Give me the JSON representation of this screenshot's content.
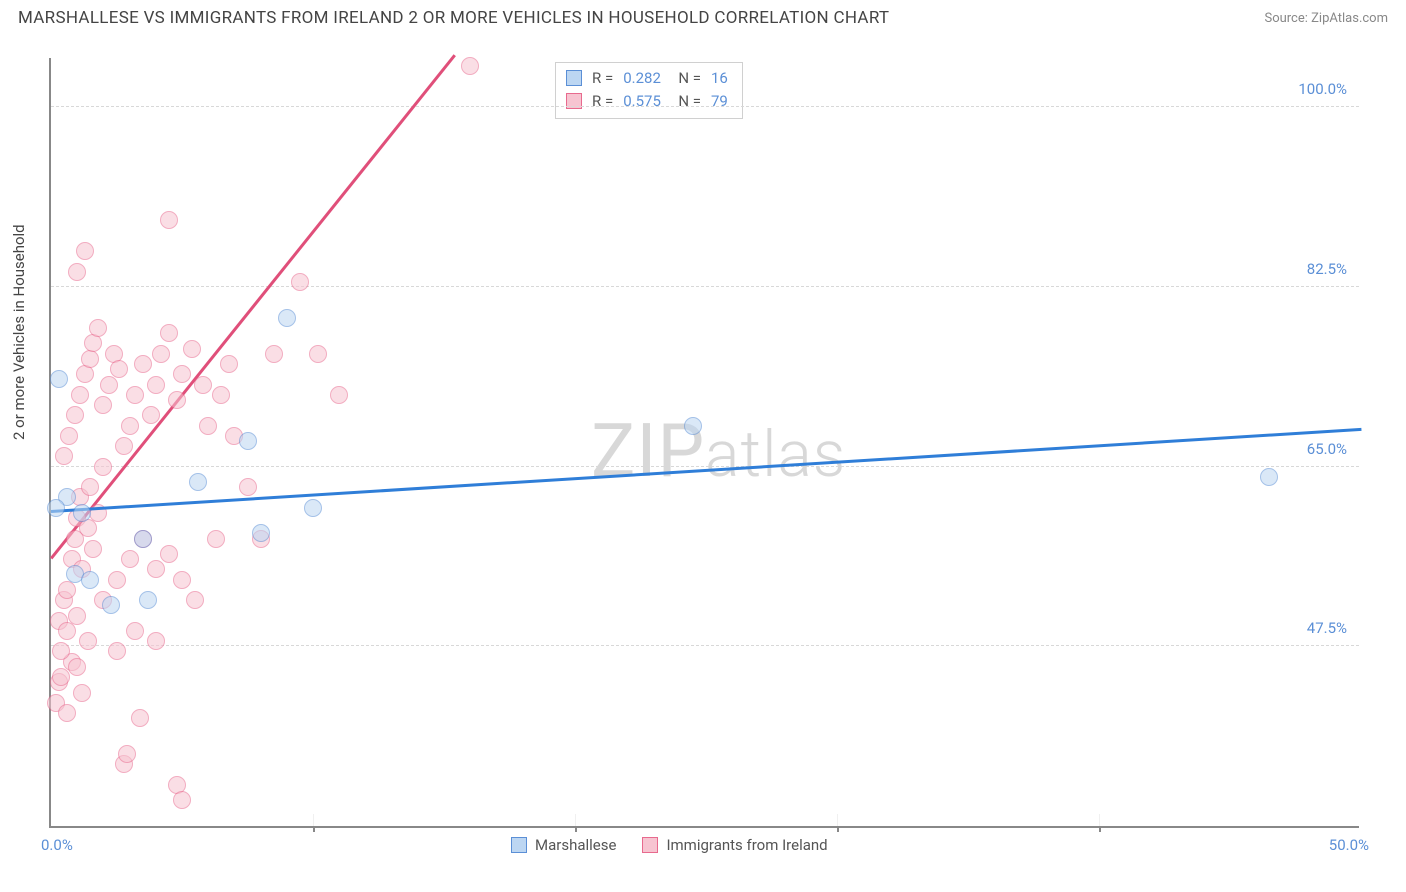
{
  "title": "MARSHALLESE VS IMMIGRANTS FROM IRELAND 2 OR MORE VEHICLES IN HOUSEHOLD CORRELATION CHART",
  "source_label": "Source: ZipAtlas.com",
  "y_axis_label": "2 or more Vehicles in Household",
  "watermark": "ZIPatlas",
  "chart": {
    "type": "scatter",
    "xlim": [
      0,
      50
    ],
    "ylim": [
      30,
      105
    ],
    "x_ticks": [
      {
        "pos": 0,
        "label": "0.0%"
      },
      {
        "pos": 50,
        "label": "50.0%"
      }
    ],
    "x_minor": [
      10,
      20,
      30,
      40
    ],
    "y_ticks": [
      {
        "pos": 100,
        "label": "100.0%"
      },
      {
        "pos": 82.5,
        "label": "82.5%"
      },
      {
        "pos": 65,
        "label": "65.0%"
      },
      {
        "pos": 47.5,
        "label": "47.5%"
      }
    ],
    "y_grid": [
      100,
      82.5,
      65,
      47.5
    ],
    "background_color": "#ffffff",
    "grid_color": "#d8d8d8",
    "axis_color": "#888888",
    "tick_label_color": "#5b8fd6",
    "series": [
      {
        "name": "Marshallese",
        "fill": "#bcd6f2",
        "stroke": "#5b8fd6",
        "marker_radius": 9,
        "stroke_width": 1.4,
        "fill_opacity": 0.55,
        "trend": {
          "x1": 0,
          "y1": 60.5,
          "x2": 50,
          "y2": 68.5,
          "color": "#2f7ed8",
          "width": 2.5
        },
        "points": [
          [
            0.3,
            73.5
          ],
          [
            0.6,
            62
          ],
          [
            0.9,
            54.5
          ],
          [
            1.2,
            60.5
          ],
          [
            1.5,
            54
          ],
          [
            2.3,
            51.5
          ],
          [
            3.5,
            58
          ],
          [
            3.7,
            52
          ],
          [
            5.6,
            63.5
          ],
          [
            8.0,
            58.5
          ],
          [
            9.0,
            79.5
          ],
          [
            7.5,
            67.5
          ],
          [
            10.0,
            61
          ],
          [
            24.5,
            69
          ],
          [
            46.5,
            64
          ],
          [
            0.2,
            61
          ]
        ]
      },
      {
        "name": "Immigrants from Ireland",
        "fill": "#f7c4d1",
        "stroke": "#e86a8e",
        "marker_radius": 9,
        "stroke_width": 1.4,
        "fill_opacity": 0.55,
        "trend": {
          "x1": 0,
          "y1": 56,
          "x2": 15.4,
          "y2": 105,
          "color": "#e04f7a",
          "width": 2.5
        },
        "points": [
          [
            0.2,
            42
          ],
          [
            0.3,
            44
          ],
          [
            0.4,
            44.5
          ],
          [
            0.6,
            41
          ],
          [
            0.8,
            46
          ],
          [
            1.0,
            45.5
          ],
          [
            1.2,
            43
          ],
          [
            2.8,
            36
          ],
          [
            2.9,
            37
          ],
          [
            3.4,
            40.5
          ],
          [
            4.8,
            34
          ],
          [
            5.0,
            32.5
          ],
          [
            0.3,
            50
          ],
          [
            0.5,
            52
          ],
          [
            0.6,
            53
          ],
          [
            0.8,
            56
          ],
          [
            0.9,
            58
          ],
          [
            1.0,
            60
          ],
          [
            1.1,
            62
          ],
          [
            1.2,
            55
          ],
          [
            1.4,
            59
          ],
          [
            1.5,
            63
          ],
          [
            1.6,
            57
          ],
          [
            1.8,
            60.5
          ],
          [
            2.0,
            65
          ],
          [
            0.5,
            66
          ],
          [
            0.7,
            68
          ],
          [
            0.9,
            70
          ],
          [
            1.1,
            72
          ],
          [
            1.3,
            74
          ],
          [
            1.5,
            75.5
          ],
          [
            1.6,
            77
          ],
          [
            1.8,
            78.5
          ],
          [
            2.0,
            71
          ],
          [
            2.2,
            73
          ],
          [
            2.4,
            76
          ],
          [
            2.6,
            74.5
          ],
          [
            1.0,
            84
          ],
          [
            1.3,
            86
          ],
          [
            2.8,
            67
          ],
          [
            3.0,
            69
          ],
          [
            3.2,
            72
          ],
          [
            3.5,
            75
          ],
          [
            3.8,
            70
          ],
          [
            4.0,
            73
          ],
          [
            4.2,
            76
          ],
          [
            4.5,
            78
          ],
          [
            4.8,
            71.5
          ],
          [
            5.0,
            74
          ],
          [
            5.4,
            76.5
          ],
          [
            5.8,
            73
          ],
          [
            6.0,
            69
          ],
          [
            6.3,
            58
          ],
          [
            6.5,
            72
          ],
          [
            6.8,
            75
          ],
          [
            7.0,
            68
          ],
          [
            7.5,
            63
          ],
          [
            8.0,
            58
          ],
          [
            3.0,
            56
          ],
          [
            3.5,
            58
          ],
          [
            4.0,
            55
          ],
          [
            4.5,
            56.5
          ],
          [
            5.0,
            54
          ],
          [
            5.5,
            52
          ],
          [
            3.2,
            49
          ],
          [
            4.0,
            48
          ],
          [
            2.5,
            47
          ],
          [
            9.5,
            83
          ],
          [
            10.2,
            76
          ],
          [
            11.0,
            72
          ],
          [
            8.5,
            76
          ],
          [
            4.5,
            89
          ],
          [
            16.0,
            104
          ],
          [
            0.4,
            47
          ],
          [
            0.6,
            49
          ],
          [
            1.0,
            50.5
          ],
          [
            1.4,
            48
          ],
          [
            2.0,
            52
          ],
          [
            2.5,
            54
          ]
        ]
      }
    ]
  },
  "stats": [
    {
      "swatch_fill": "#bcd6f2",
      "swatch_stroke": "#5b8fd6",
      "r": "0.282",
      "n": "16"
    },
    {
      "swatch_fill": "#f7c4d1",
      "swatch_stroke": "#e86a8e",
      "r": "0.575",
      "n": "79"
    }
  ],
  "legend": [
    {
      "swatch_fill": "#bcd6f2",
      "swatch_stroke": "#5b8fd6",
      "label": "Marshallese"
    },
    {
      "swatch_fill": "#f7c4d1",
      "swatch_stroke": "#e86a8e",
      "label": "Immigrants from Ireland"
    }
  ]
}
